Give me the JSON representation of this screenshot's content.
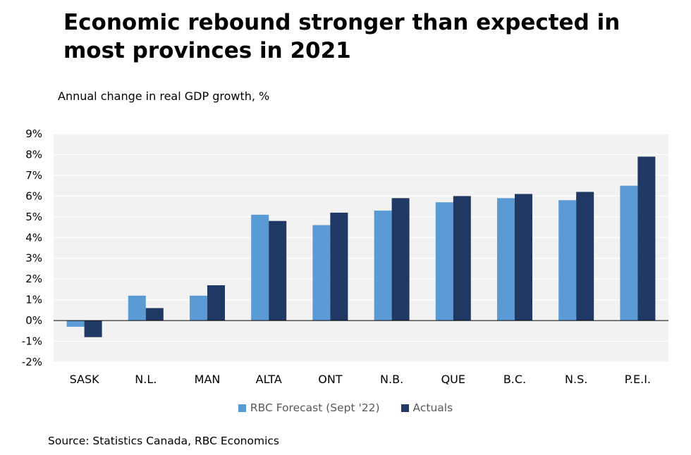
{
  "title": "Economic rebound stronger than expected in most provinces in 2021",
  "subtitle": "Annual change in real GDP growth, %",
  "source": "Source: Statistics Canada, RBC Economics",
  "colors": {
    "forecast": "#5b9bd5",
    "actuals": "#1f3864",
    "plot_bg": "#f2f2f2",
    "grid": "#ffffff",
    "zero_line": "#000000"
  },
  "chart_data": {
    "type": "bar",
    "categories": [
      "SASK",
      "N.L.",
      "MAN",
      "ALTA",
      "ONT",
      "N.B.",
      "QUE",
      "B.C.",
      "N.S.",
      "P.E.I."
    ],
    "series": [
      {
        "name": "RBC Forecast (Sept '22)",
        "values": [
          -0.3,
          1.2,
          1.2,
          5.1,
          4.6,
          5.3,
          5.7,
          5.9,
          5.8,
          6.5
        ]
      },
      {
        "name": "Actuals",
        "values": [
          -0.8,
          0.6,
          1.7,
          4.8,
          5.2,
          5.9,
          6.0,
          6.1,
          6.2,
          7.9
        ]
      }
    ],
    "ylim": [
      -2,
      9
    ],
    "yticks": [
      -2,
      -1,
      0,
      1,
      2,
      3,
      4,
      5,
      6,
      7,
      8,
      9
    ],
    "ytick_labels": [
      "-2%",
      "-1%",
      "0%",
      "1%",
      "2%",
      "3%",
      "4%",
      "5%",
      "6%",
      "7%",
      "8%",
      "9%"
    ],
    "grid": true,
    "legend_position": "bottom"
  }
}
